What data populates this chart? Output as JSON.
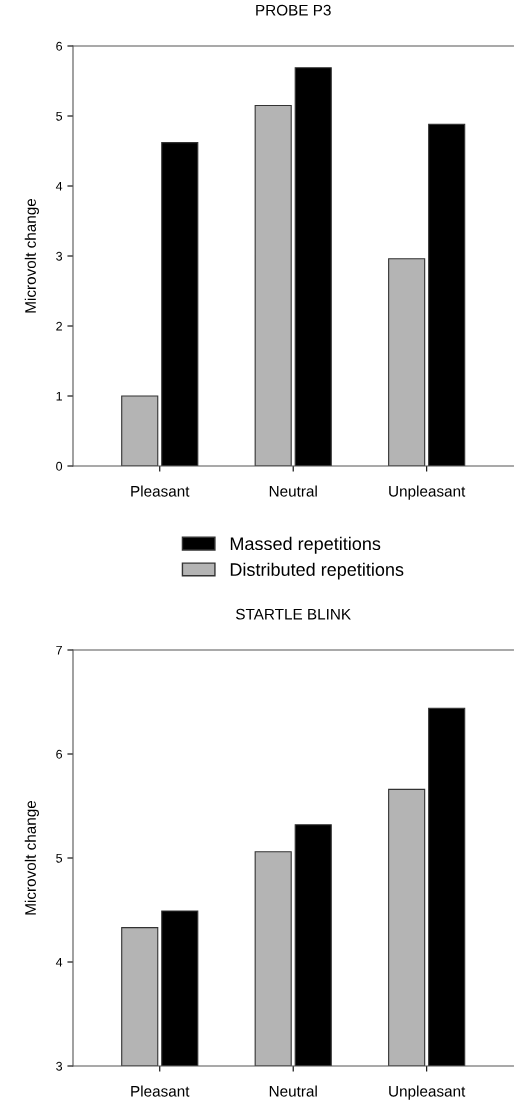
{
  "chart_data": [
    {
      "type": "bar",
      "title": "PROBE P3",
      "ylabel": "Microvolt change",
      "categories": [
        "Pleasant",
        "Neutral",
        "Unpleasant"
      ],
      "series": [
        {
          "name": "Distributed repetitions",
          "color": "#b4b4b4",
          "values": [
            1.0,
            5.15,
            2.96
          ]
        },
        {
          "name": "Massed repetitions",
          "color": "#000000",
          "values": [
            4.62,
            5.69,
            4.88
          ]
        }
      ],
      "ylim": [
        0,
        6
      ],
      "yticks": [
        0,
        1,
        2,
        3,
        4,
        5,
        6
      ],
      "legend": "bottom",
      "grid": false
    },
    {
      "type": "bar",
      "title": "STARTLE BLINK",
      "ylabel": "Microvolt change",
      "categories": [
        "Pleasant",
        "Neutral",
        "Unpleasant"
      ],
      "series": [
        {
          "color": "#b4b4b4",
          "values": [
            4.33,
            5.06,
            5.66
          ]
        },
        {
          "color": "#000000",
          "values": [
            4.49,
            5.32,
            6.44
          ]
        }
      ],
      "ylim": [
        3,
        7
      ],
      "yticks": [
        3,
        4,
        5,
        6,
        7
      ],
      "grid": false
    }
  ]
}
